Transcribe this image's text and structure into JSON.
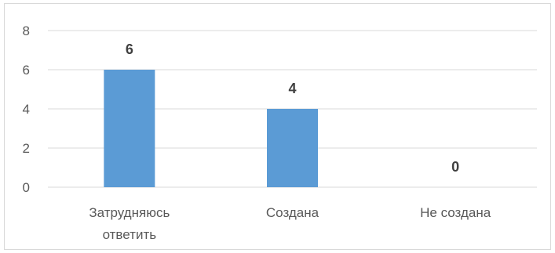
{
  "chart_data": {
    "type": "bar",
    "categories": [
      [
        "Затрудняюсь",
        "ответить"
      ],
      [
        "Создана"
      ],
      [
        "Не создана"
      ]
    ],
    "values": [
      6,
      4,
      0
    ],
    "data_labels": [
      "6",
      "4",
      "0"
    ],
    "y_ticks": [
      "0",
      "2",
      "4",
      "6",
      "8"
    ],
    "ylim": [
      0,
      8
    ],
    "grid": true,
    "legend": "none",
    "title": "",
    "xlabel": "",
    "ylabel": "",
    "colors": {
      "bar": "#5b9bd5",
      "grid": "#d9d9d9",
      "text": "#595959",
      "data_label": "#404040"
    }
  }
}
